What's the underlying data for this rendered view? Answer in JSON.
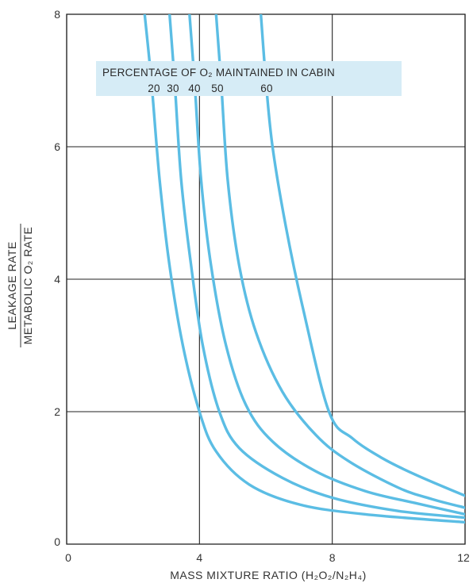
{
  "chart_data": {
    "type": "line",
    "title": "",
    "xlabel": "MASS MIXTURE RATIO (H₂O₂/N₂H₄)",
    "ylabel_numerator": "LEAKAGE RATE",
    "ylabel_denominator": "METABOLIC O₂ RATE",
    "xlim": [
      0,
      12
    ],
    "ylim": [
      0,
      8
    ],
    "x_ticks": [
      0,
      4,
      8,
      12
    ],
    "y_ticks": [
      0,
      2,
      4,
      6,
      8
    ],
    "grid": true,
    "line_color": "#5bbde4",
    "legend": {
      "title": "PERCENTAGE OF O₂ MAINTAINED IN CABIN",
      "labels": [
        "20",
        "30",
        "40",
        "50",
        "60"
      ],
      "background": "#d6ecf6",
      "placement": "top-center"
    },
    "series": [
      {
        "name": "20",
        "points": [
          [
            2.35,
            8.0
          ],
          [
            2.55,
            7.0
          ],
          [
            2.8,
            5.5
          ],
          [
            3.1,
            4.2
          ],
          [
            3.5,
            3.0
          ],
          [
            4.0,
            2.0
          ],
          [
            4.5,
            1.4
          ],
          [
            5.5,
            0.9
          ],
          [
            7.0,
            0.6
          ],
          [
            9.0,
            0.45
          ],
          [
            12.0,
            0.33
          ]
        ]
      },
      {
        "name": "30",
        "points": [
          [
            3.1,
            8.0
          ],
          [
            3.25,
            7.0
          ],
          [
            3.45,
            5.5
          ],
          [
            3.75,
            4.2
          ],
          [
            4.1,
            3.0
          ],
          [
            4.6,
            2.0
          ],
          [
            5.2,
            1.45
          ],
          [
            6.5,
            1.0
          ],
          [
            8.0,
            0.7
          ],
          [
            10.0,
            0.5
          ],
          [
            12.0,
            0.4
          ]
        ]
      },
      {
        "name": "40",
        "points": [
          [
            3.7,
            8.0
          ],
          [
            3.85,
            7.0
          ],
          [
            4.05,
            5.5
          ],
          [
            4.35,
            4.2
          ],
          [
            4.8,
            3.0
          ],
          [
            5.4,
            2.1
          ],
          [
            6.2,
            1.55
          ],
          [
            7.5,
            1.1
          ],
          [
            9.0,
            0.8
          ],
          [
            10.5,
            0.62
          ],
          [
            12.0,
            0.45
          ]
        ]
      },
      {
        "name": "50",
        "points": [
          [
            4.5,
            8.0
          ],
          [
            4.65,
            7.0
          ],
          [
            4.85,
            5.5
          ],
          [
            5.2,
            4.2
          ],
          [
            5.7,
            3.2
          ],
          [
            6.5,
            2.3
          ],
          [
            7.5,
            1.65
          ],
          [
            8.5,
            1.25
          ],
          [
            10.0,
            0.85
          ],
          [
            11.0,
            0.68
          ],
          [
            12.0,
            0.55
          ]
        ]
      },
      {
        "name": "60",
        "points": [
          [
            5.85,
            8.0
          ],
          [
            6.0,
            7.0
          ],
          [
            6.2,
            6.0
          ],
          [
            6.6,
            4.8
          ],
          [
            7.1,
            3.6
          ],
          [
            7.9,
            2.0
          ],
          [
            8.6,
            1.6
          ],
          [
            9.5,
            1.3
          ],
          [
            10.5,
            1.05
          ],
          [
            12.0,
            0.73
          ]
        ]
      }
    ]
  }
}
